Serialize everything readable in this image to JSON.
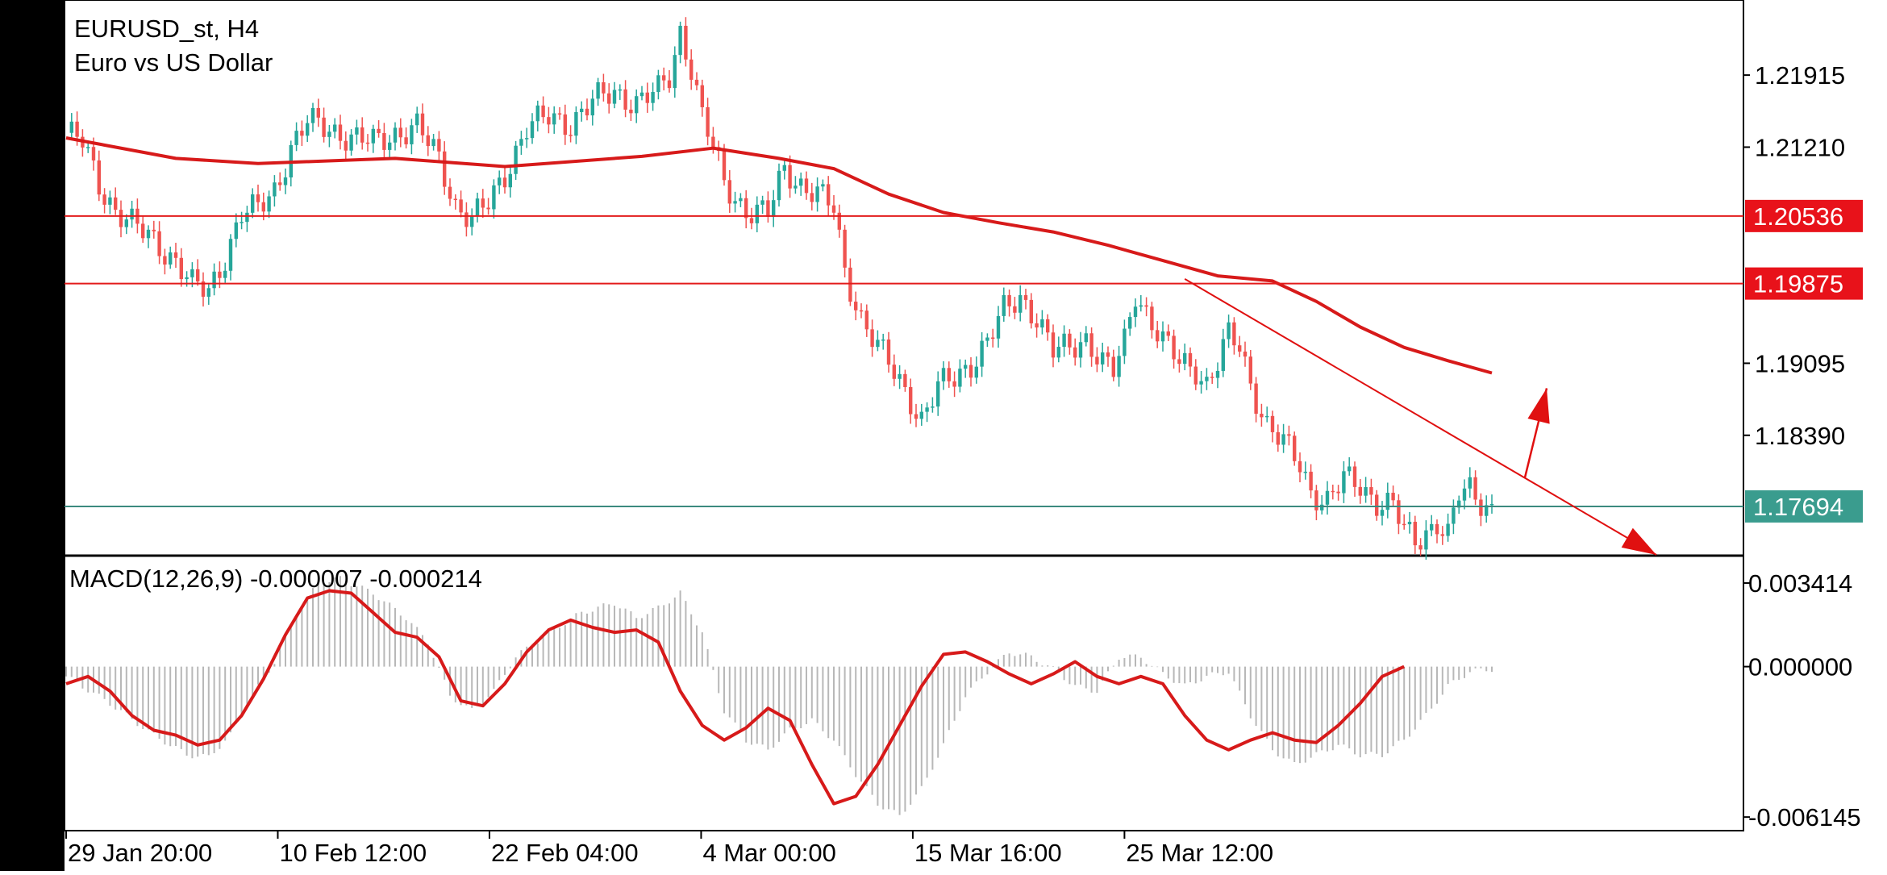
{
  "symbol": "EURUSD_st, H4",
  "description": "Euro vs US Dollar",
  "colors": {
    "bull": "#26a69a",
    "bear": "#ef5350",
    "ma": "#d71a1a",
    "level_line": "#e31b1b",
    "current_line": "#3b8a7f",
    "current_badge": "#3a9c8e",
    "level_badge": "#e8121a",
    "macd_hist": "#b8b8b8",
    "macd_signal": "#d71a1a",
    "arrow": "#e01010"
  },
  "chart_data": [
    {
      "type": "candlestick",
      "panel": "price",
      "ylim": [
        1.1722,
        1.2265
      ],
      "y_ticks": [
        "1.21915",
        "1.21210",
        "1.19095",
        "1.18390"
      ],
      "x_ticks": [
        "29 Jan 20:00",
        "10 Feb 12:00",
        "22 Feb 04:00",
        "4 Mar 00:00",
        "15 Mar 16:00",
        "25 Mar 12:00"
      ],
      "close_path": [
        [
          0,
          1.2135
        ],
        [
          3,
          1.2125
        ],
        [
          6,
          1.2085
        ],
        [
          9,
          1.206
        ],
        [
          12,
          1.2045
        ],
        [
          16,
          1.203
        ],
        [
          20,
          1.201
        ],
        [
          23,
          1.1985
        ],
        [
          26,
          1.198
        ],
        [
          29,
          1.2015
        ],
        [
          32,
          1.2055
        ],
        [
          35,
          1.206
        ],
        [
          38,
          1.208
        ],
        [
          41,
          1.212
        ],
        [
          44,
          1.2145
        ],
        [
          48,
          1.214
        ],
        [
          52,
          1.213
        ],
        [
          56,
          1.2125
        ],
        [
          60,
          1.2135
        ],
        [
          64,
          1.214
        ],
        [
          68,
          1.211
        ],
        [
          71,
          1.2065
        ],
        [
          74,
          1.205
        ],
        [
          77,
          1.2065
        ],
        [
          80,
          1.2095
        ],
        [
          84,
          1.214
        ],
        [
          88,
          1.215
        ],
        [
          92,
          1.2145
        ],
        [
          96,
          1.2165
        ],
        [
          100,
          1.2175
        ],
        [
          104,
          1.2165
        ],
        [
          108,
          1.2175
        ],
        [
          110,
          1.219
        ],
        [
          112,
          1.2235
        ],
        [
          114,
          1.22
        ],
        [
          116,
          1.215
        ],
        [
          118,
          1.212
        ],
        [
          120,
          1.2085
        ],
        [
          124,
          1.206
        ],
        [
          128,
          1.2055
        ],
        [
          131,
          1.21
        ],
        [
          134,
          1.2085
        ],
        [
          137,
          1.2075
        ],
        [
          140,
          1.206
        ],
        [
          142,
          1.2
        ],
        [
          145,
          1.1955
        ],
        [
          148,
          1.1925
        ],
        [
          151,
          1.19
        ],
        [
          154,
          1.1875
        ],
        [
          156,
          1.1855
        ],
        [
          159,
          1.1885
        ],
        [
          162,
          1.1895
        ],
        [
          165,
          1.191
        ],
        [
          168,
          1.193
        ],
        [
          171,
          1.196
        ],
        [
          174,
          1.1975
        ],
        [
          177,
          1.1955
        ],
        [
          180,
          1.192
        ],
        [
          183,
          1.1925
        ],
        [
          186,
          1.1935
        ],
        [
          189,
          1.191
        ],
        [
          191,
          1.19
        ],
        [
          193,
          1.193
        ],
        [
          195,
          1.198
        ],
        [
          197,
          1.196
        ],
        [
          200,
          1.193
        ],
        [
          203,
          1.191
        ],
        [
          206,
          1.1905
        ],
        [
          208,
          1.189
        ],
        [
          210,
          1.191
        ],
        [
          212,
          1.1935
        ],
        [
          214,
          1.1925
        ],
        [
          216,
          1.189
        ],
        [
          219,
          1.185
        ],
        [
          222,
          1.183
        ],
        [
          225,
          1.181
        ],
        [
          227,
          1.1785
        ],
        [
          230,
          1.1775
        ],
        [
          233,
          1.1795
        ],
        [
          236,
          1.179
        ],
        [
          239,
          1.1775
        ],
        [
          242,
          1.177
        ],
        [
          244,
          1.1745
        ],
        [
          246,
          1.1735
        ],
        [
          248,
          1.1745
        ],
        [
          250,
          1.1755
        ],
        [
          252,
          1.174
        ],
        [
          254,
          1.178
        ],
        [
          256,
          1.1785
        ],
        [
          258,
          1.1775
        ],
        [
          260,
          1.1768
        ]
      ],
      "moving_average": [
        [
          0,
          1.213
        ],
        [
          20,
          1.211
        ],
        [
          35,
          1.2105
        ],
        [
          60,
          1.211
        ],
        [
          80,
          1.2102
        ],
        [
          105,
          1.2112
        ],
        [
          118,
          1.212
        ],
        [
          130,
          1.211
        ],
        [
          140,
          1.21
        ],
        [
          150,
          1.2075
        ],
        [
          160,
          1.2057
        ],
        [
          170,
          1.2047
        ],
        [
          180,
          1.2038
        ],
        [
          190,
          1.2025
        ],
        [
          200,
          1.201
        ],
        [
          210,
          1.1995
        ],
        [
          220,
          1.199
        ],
        [
          228,
          1.197
        ],
        [
          236,
          1.1945
        ],
        [
          244,
          1.1925
        ],
        [
          252,
          1.1912
        ],
        [
          260,
          1.19
        ]
      ],
      "levels": [
        {
          "value": 1.20536,
          "label": "1.20536",
          "kind": "resistance"
        },
        {
          "value": 1.19875,
          "label": "1.19875",
          "kind": "resistance"
        },
        {
          "value": 1.17694,
          "label": "1.17694",
          "kind": "current"
        }
      ],
      "trendline": [
        [
          204,
          1.1992
        ],
        [
          290,
          1.1722
        ]
      ],
      "up_arrow": [
        [
          266,
          1.1797
        ],
        [
          270,
          1.1885
        ]
      ]
    },
    {
      "type": "macd",
      "panel": "indicator",
      "label": "MACD(12,26,9) -0.000007 -0.000214",
      "params": [
        12,
        26,
        9
      ],
      "values": [
        "-0.000007",
        "-0.000214"
      ],
      "ylim": [
        -0.0067,
        0.0045
      ],
      "y_ticks": [
        "0.003414",
        "0.000000",
        "-0.006145"
      ],
      "histogram_path": [
        [
          0,
          -0.0004
        ],
        [
          8,
          -0.0015
        ],
        [
          16,
          -0.0028
        ],
        [
          22,
          -0.0036
        ],
        [
          26,
          -0.0037
        ],
        [
          30,
          -0.0028
        ],
        [
          34,
          -0.0012
        ],
        [
          38,
          0.0002
        ],
        [
          42,
          0.0022
        ],
        [
          46,
          0.0034
        ],
        [
          50,
          0.0036
        ],
        [
          56,
          0.003
        ],
        [
          62,
          0.002
        ],
        [
          66,
          0.001
        ],
        [
          70,
          -0.0012
        ],
        [
          74,
          -0.0018
        ],
        [
          78,
          -0.001
        ],
        [
          82,
          0.0004
        ],
        [
          88,
          0.0014
        ],
        [
          94,
          0.0022
        ],
        [
          100,
          0.0026
        ],
        [
          104,
          0.002
        ],
        [
          108,
          0.0024
        ],
        [
          112,
          0.003
        ],
        [
          116,
          0.0014
        ],
        [
          120,
          -0.0018
        ],
        [
          124,
          -0.003
        ],
        [
          128,
          -0.0034
        ],
        [
          132,
          -0.0026
        ],
        [
          136,
          -0.0022
        ],
        [
          140,
          -0.003
        ],
        [
          144,
          -0.0044
        ],
        [
          148,
          -0.0056
        ],
        [
          152,
          -0.0061
        ],
        [
          156,
          -0.005
        ],
        [
          160,
          -0.0032
        ],
        [
          164,
          -0.0012
        ],
        [
          168,
          -0.0002
        ],
        [
          172,
          0.0006
        ],
        [
          176,
          0.0004
        ],
        [
          180,
          -0.0001
        ],
        [
          184,
          -0.0008
        ],
        [
          188,
          -0.001
        ],
        [
          192,
          0.0004
        ],
        [
          196,
          0.0004
        ],
        [
          200,
          -0.0003
        ],
        [
          204,
          -0.0008
        ],
        [
          208,
          -0.0004
        ],
        [
          212,
          -0.0002
        ],
        [
          216,
          -0.002
        ],
        [
          220,
          -0.0034
        ],
        [
          224,
          -0.004
        ],
        [
          228,
          -0.0036
        ],
        [
          232,
          -0.0032
        ],
        [
          236,
          -0.0036
        ],
        [
          240,
          -0.0036
        ],
        [
          244,
          -0.003
        ],
        [
          248,
          -0.002
        ],
        [
          252,
          -0.0008
        ],
        [
          256,
          -0.0002
        ],
        [
          260,
          -0.0001
        ]
      ],
      "signal_path": [
        [
          0,
          -0.0007
        ],
        [
          4,
          -0.0004
        ],
        [
          8,
          -0.001
        ],
        [
          12,
          -0.002
        ],
        [
          16,
          -0.0026
        ],
        [
          20,
          -0.0028
        ],
        [
          24,
          -0.0032
        ],
        [
          28,
          -0.003
        ],
        [
          32,
          -0.002
        ],
        [
          36,
          -0.0005
        ],
        [
          40,
          0.0013
        ],
        [
          44,
          0.0028
        ],
        [
          48,
          0.0031
        ],
        [
          52,
          0.003
        ],
        [
          56,
          0.0022
        ],
        [
          60,
          0.0014
        ],
        [
          64,
          0.0012
        ],
        [
          68,
          0.0004
        ],
        [
          72,
          -0.0014
        ],
        [
          76,
          -0.0016
        ],
        [
          80,
          -0.0007
        ],
        [
          84,
          0.0006
        ],
        [
          88,
          0.0015
        ],
        [
          92,
          0.0019
        ],
        [
          96,
          0.0016
        ],
        [
          100,
          0.0014
        ],
        [
          104,
          0.0015
        ],
        [
          108,
          0.001
        ],
        [
          112,
          -0.001
        ],
        [
          116,
          -0.0024
        ],
        [
          120,
          -0.003
        ],
        [
          124,
          -0.0025
        ],
        [
          128,
          -0.0017
        ],
        [
          132,
          -0.0022
        ],
        [
          136,
          -0.004
        ],
        [
          140,
          -0.0056
        ],
        [
          144,
          -0.0053
        ],
        [
          148,
          -0.004
        ],
        [
          152,
          -0.0024
        ],
        [
          156,
          -0.0008
        ],
        [
          160,
          0.0005
        ],
        [
          164,
          0.0006
        ],
        [
          168,
          0.0002
        ],
        [
          172,
          -0.0003
        ],
        [
          176,
          -0.0007
        ],
        [
          180,
          -0.0003
        ],
        [
          184,
          0.0002
        ],
        [
          188,
          -0.0004
        ],
        [
          192,
          -0.0007
        ],
        [
          196,
          -0.0004
        ],
        [
          200,
          -0.0007
        ],
        [
          204,
          -0.002
        ],
        [
          208,
          -0.003
        ],
        [
          212,
          -0.0034
        ],
        [
          216,
          -0.003
        ],
        [
          220,
          -0.0027
        ],
        [
          224,
          -0.003
        ],
        [
          228,
          -0.0031
        ],
        [
          232,
          -0.0024
        ],
        [
          236,
          -0.0015
        ],
        [
          240,
          -0.0004
        ],
        [
          244,
          -0.0
        ]
      ]
    }
  ]
}
